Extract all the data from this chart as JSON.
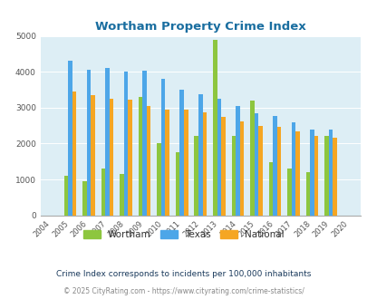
{
  "title": "Wortham Property Crime Index",
  "years": [
    2004,
    2005,
    2006,
    2007,
    2008,
    2009,
    2010,
    2011,
    2012,
    2013,
    2014,
    2015,
    2016,
    2017,
    2018,
    2019,
    2020
  ],
  "wortham": [
    null,
    1100,
    950,
    1300,
    1150,
    3300,
    2000,
    1750,
    2200,
    4900,
    2200,
    3200,
    1480,
    1300,
    1200,
    2200,
    null
  ],
  "texas": [
    null,
    4300,
    4050,
    4100,
    4000,
    4020,
    3800,
    3500,
    3380,
    3250,
    3050,
    2850,
    2780,
    2600,
    2400,
    2400,
    null
  ],
  "national": [
    null,
    3450,
    3340,
    3250,
    3220,
    3050,
    2950,
    2950,
    2880,
    2730,
    2620,
    2500,
    2470,
    2340,
    2200,
    2150,
    null
  ],
  "wortham_color": "#8dc63f",
  "texas_color": "#4da6e8",
  "national_color": "#f5a623",
  "bg_color": "#ddeef5",
  "ylim": [
    0,
    5000
  ],
  "yticks": [
    0,
    1000,
    2000,
    3000,
    4000,
    5000
  ],
  "subtitle": "Crime Index corresponds to incidents per 100,000 inhabitants",
  "footer": "© 2025 CityRating.com - https://www.cityrating.com/crime-statistics/",
  "legend_labels": [
    "Wortham",
    "Texas",
    "National"
  ],
  "title_color": "#1a6ea0",
  "subtitle_color": "#1a3a5c",
  "footer_color": "#888888",
  "url_color": "#3a7abf"
}
